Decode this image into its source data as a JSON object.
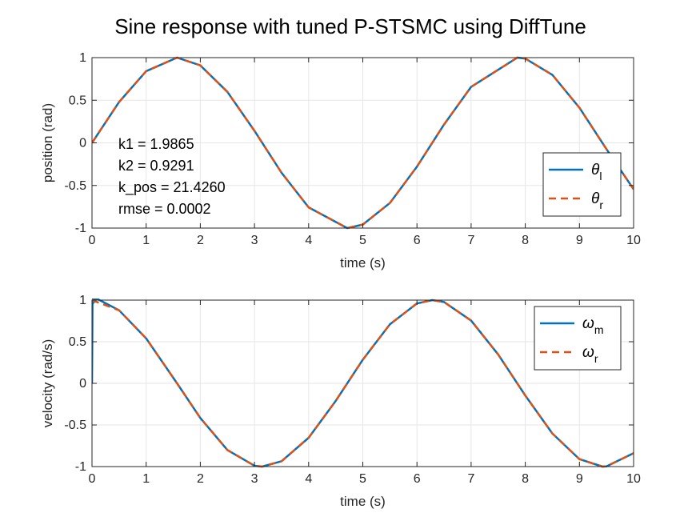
{
  "figure": {
    "title": "Sine response with tuned P-STSMC using DiffTune",
    "colors": {
      "blue": "#0072bd",
      "orange": "#d95319",
      "grid": "#e6e6e6",
      "axis": "#262626"
    }
  },
  "chart_data": [
    {
      "type": "line",
      "title": "Sine response with tuned P-STSMC using DiffTune",
      "xlabel": "time (s)",
      "ylabel": "position (rad)",
      "xlim": [
        0,
        10
      ],
      "ylim": [
        -1,
        1
      ],
      "x_ticks": [
        0,
        1,
        2,
        3,
        4,
        5,
        6,
        7,
        8,
        9,
        10
      ],
      "y_ticks": [
        -1,
        -0.5,
        0,
        0.5,
        1
      ],
      "grid": true,
      "legend_position": "bottom-right",
      "annotation": [
        "k1 = 1.9865",
        "k2 = 0.9291",
        "k_pos = 21.4260",
        "rmse = 0.0002"
      ],
      "series": [
        {
          "symbol": "θ",
          "subscript": "l",
          "style": "solid",
          "color": "#0072bd",
          "x": [
            0,
            0.5,
            1,
            1.5708,
            2,
            2.5,
            3,
            3.5,
            4,
            4.7124,
            5,
            5.5,
            6,
            6.5,
            7,
            7.854,
            8,
            8.5,
            9,
            9.5,
            10
          ],
          "y": [
            0,
            0.479,
            0.841,
            1,
            0.909,
            0.598,
            0.141,
            -0.351,
            -0.757,
            -1,
            -0.959,
            -0.706,
            -0.279,
            0.215,
            0.657,
            1,
            0.989,
            0.798,
            0.412,
            -0.075,
            -0.544
          ]
        },
        {
          "symbol": "θ",
          "subscript": "r",
          "style": "dashed",
          "color": "#d95319",
          "x": [
            0,
            0.5,
            1,
            1.5708,
            2,
            2.5,
            3,
            3.5,
            4,
            4.7124,
            5,
            5.5,
            6,
            6.5,
            7,
            7.854,
            8,
            8.5,
            9,
            9.5,
            10
          ],
          "y": [
            0,
            0.479,
            0.841,
            1,
            0.909,
            0.598,
            0.141,
            -0.351,
            -0.757,
            -1,
            -0.959,
            -0.706,
            -0.279,
            0.215,
            0.657,
            1,
            0.989,
            0.798,
            0.412,
            -0.075,
            -0.544
          ]
        }
      ]
    },
    {
      "type": "line",
      "xlabel": "time (s)",
      "ylabel": "velocity (rad/s)",
      "xlim": [
        0,
        10
      ],
      "ylim": [
        -1,
        1
      ],
      "x_ticks": [
        0,
        1,
        2,
        3,
        4,
        5,
        6,
        7,
        8,
        9,
        10
      ],
      "y_ticks": [
        -1,
        -0.5,
        0,
        0.5,
        1
      ],
      "grid": true,
      "legend_position": "top-right",
      "series": [
        {
          "symbol": "ω",
          "subscript": "m",
          "style": "solid",
          "color": "#0072bd",
          "x": [
            0,
            0.005,
            0.01,
            0.02,
            0.03,
            0.05,
            0.08,
            0.5,
            1,
            1.5708,
            2,
            2.5,
            3,
            3.1416,
            3.5,
            4,
            4.5,
            5,
            5.5,
            6,
            6.2832,
            6.5,
            7,
            7.5,
            8,
            8.5,
            9,
            9.4248,
            9.5,
            10
          ],
          "y": [
            0,
            0.45,
            1.06,
            0.96,
            1.05,
            0.98,
            1.02,
            0.878,
            0.54,
            0,
            -0.416,
            -0.801,
            -0.99,
            -1,
            -0.936,
            -0.654,
            -0.211,
            0.284,
            0.709,
            0.96,
            1,
            0.977,
            0.754,
            0.347,
            -0.146,
            -0.602,
            -0.911,
            -1,
            -0.997,
            -0.839
          ]
        },
        {
          "symbol": "ω",
          "subscript": "r",
          "style": "dashed",
          "color": "#d95319",
          "x": [
            0,
            0.5,
            1,
            1.5708,
            2,
            2.5,
            3,
            3.1416,
            3.5,
            4,
            4.5,
            5,
            5.5,
            6,
            6.2832,
            6.5,
            7,
            7.5,
            8,
            8.5,
            9,
            9.4248,
            9.5,
            10
          ],
          "y": [
            1,
            0.878,
            0.54,
            0,
            -0.416,
            -0.801,
            -0.99,
            -1,
            -0.936,
            -0.654,
            -0.211,
            0.284,
            0.709,
            0.96,
            1,
            0.977,
            0.754,
            0.347,
            -0.146,
            -0.602,
            -0.911,
            -1,
            -0.997,
            -0.839
          ]
        }
      ]
    }
  ]
}
